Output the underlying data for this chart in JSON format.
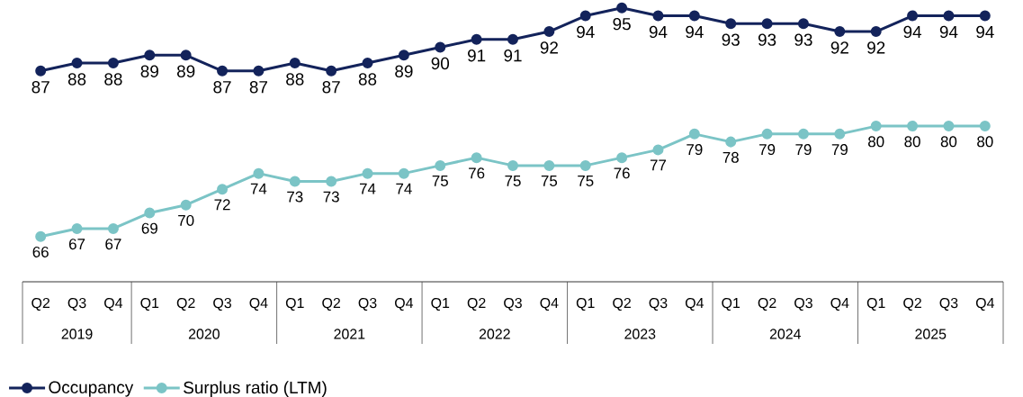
{
  "chart_data": {
    "type": "line",
    "categories": [
      "Q2",
      "Q3",
      "Q4",
      "Q1",
      "Q2",
      "Q3",
      "Q4",
      "Q1",
      "Q2",
      "Q3",
      "Q4",
      "Q1",
      "Q2",
      "Q3",
      "Q4",
      "Q1",
      "Q2",
      "Q3",
      "Q4",
      "Q1",
      "Q2",
      "Q3",
      "Q4",
      "Q1",
      "Q2",
      "Q3",
      "Q4"
    ],
    "annotations": [
      "2019",
      "2020",
      "2021",
      "2022",
      "2023",
      "2024",
      "2025"
    ],
    "series": [
      {
        "name": "Occupancy",
        "color": "#13235b",
        "values": [
          87,
          88,
          88,
          89,
          89,
          87,
          87,
          88,
          87,
          88,
          89,
          90,
          91,
          91,
          92,
          94,
          95,
          94,
          94,
          93,
          93,
          93,
          92,
          92,
          94,
          94,
          94
        ]
      },
      {
        "name": "Surplus ratio (LTM)",
        "color": "#7bc4c6",
        "values": [
          66,
          67,
          67,
          69,
          70,
          72,
          74,
          73,
          73,
          74,
          74,
          75,
          76,
          75,
          75,
          75,
          76,
          77,
          79,
          78,
          79,
          79,
          79,
          80,
          80,
          80,
          80
        ]
      }
    ],
    "data_labels": true,
    "marker": "circle",
    "line_style": "solid",
    "legend": "bottom left"
  }
}
